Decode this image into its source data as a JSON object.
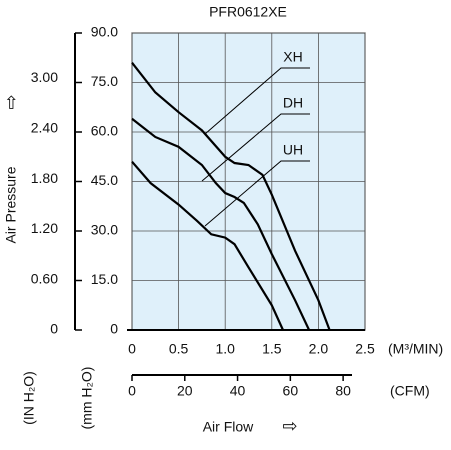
{
  "chart_data": {
    "type": "line",
    "title": "PFR0612XE",
    "x_label": "Air Flow",
    "x_unit": "(M³/MIN)",
    "x2_unit": "(CFM)",
    "y_label": "Air Pressure",
    "y_unit": "(mm H₂O)",
    "y2_unit": "(IN H₂O)",
    "xlim": [
      0,
      2.5
    ],
    "xticks": [
      0,
      0.5,
      {
        "value": 1,
        "label": "1.0"
      },
      1.5,
      {
        "value": 2,
        "label": "2.0"
      },
      2.5
    ],
    "x2lim": [
      0,
      88.29
    ],
    "x2ticks": [
      0,
      20,
      40,
      60,
      80
    ],
    "ylim": [
      0,
      90
    ],
    "yticks": [
      0,
      {
        "value": 15,
        "label": "15.0"
      },
      {
        "value": 30,
        "label": "30.0"
      },
      {
        "value": 45,
        "label": "45.0"
      },
      {
        "value": 60,
        "label": "60.0"
      },
      {
        "value": 75,
        "label": "75.0"
      },
      {
        "value": 90,
        "label": "90.0"
      }
    ],
    "y2lim": [
      0,
      3.543
    ],
    "y2ticks": [
      0,
      {
        "value": 0.6,
        "label": "0.60"
      },
      {
        "value": 1.2,
        "label": "1.20"
      },
      {
        "value": 1.8,
        "label": "1.80"
      },
      {
        "value": 2.4,
        "label": "2.40"
      },
      {
        "value": 3,
        "label": "3.00"
      }
    ],
    "grid": true,
    "plot_background": "#dff0fa",
    "series": [
      {
        "name": "XH",
        "color": "#000000",
        "x": [
          0,
          0.25,
          0.5,
          0.75,
          1.0,
          1.1,
          1.25,
          1.4,
          1.5,
          1.75,
          2.0,
          2.12
        ],
        "values": [
          81,
          72,
          66,
          60.5,
          52.5,
          50.6,
          50,
          47,
          41,
          24,
          9,
          0
        ]
      },
      {
        "name": "DH",
        "color": "#000000",
        "x": [
          0,
          0.25,
          0.5,
          0.75,
          0.9,
          1.0,
          1.1,
          1.2,
          1.35,
          1.5,
          1.75,
          1.9
        ],
        "values": [
          64,
          58.5,
          55.5,
          50,
          44.5,
          41.5,
          40.3,
          38.5,
          32,
          23,
          9,
          0
        ]
      },
      {
        "name": "UH",
        "color": "#000000",
        "x": [
          0,
          0.2,
          0.5,
          0.7,
          0.85,
          1.0,
          1.1,
          1.25,
          1.5,
          1.62
        ],
        "values": [
          51,
          44.5,
          38,
          33,
          29,
          28,
          26,
          19,
          7.5,
          0
        ]
      }
    ]
  }
}
